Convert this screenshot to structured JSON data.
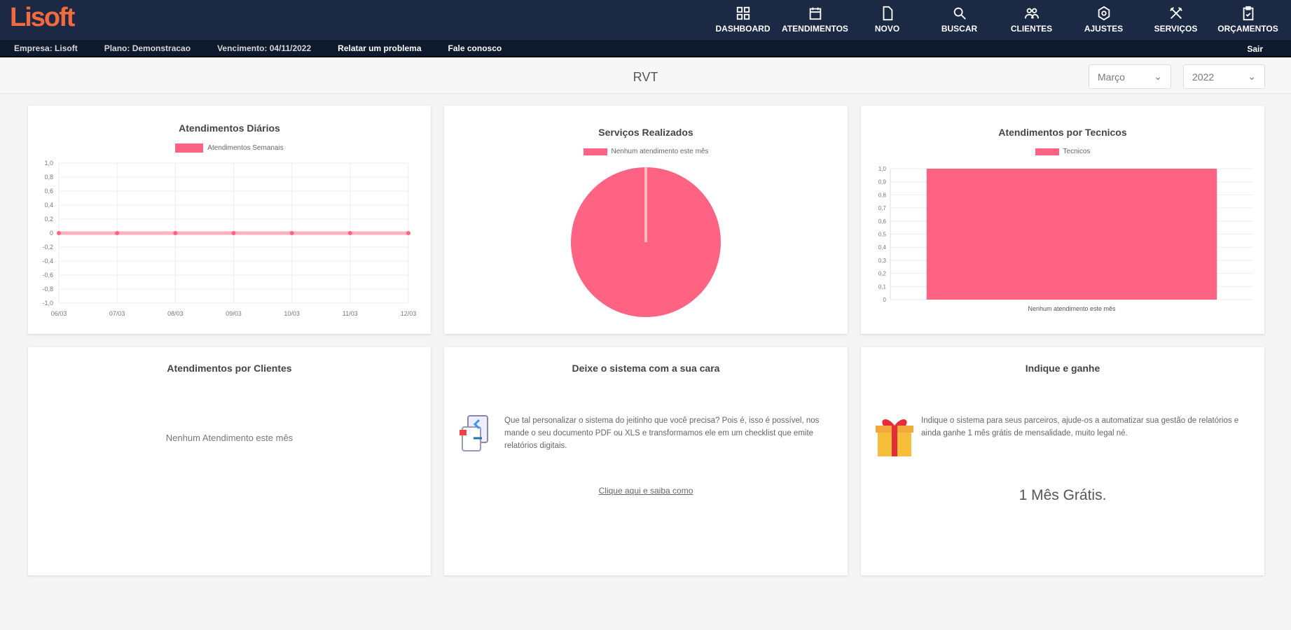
{
  "header": {
    "logo": "Lisoft",
    "nav": [
      {
        "label": "DASHBOARD",
        "icon": "dashboard-icon"
      },
      {
        "label": "ATENDIMENTOS",
        "icon": "calendar-icon"
      },
      {
        "label": "NOVO",
        "icon": "file-icon"
      },
      {
        "label": "BUSCAR",
        "icon": "search-icon"
      },
      {
        "label": "CLIENTES",
        "icon": "users-icon"
      },
      {
        "label": "AJUSTES",
        "icon": "settings-icon"
      },
      {
        "label": "SERVIÇOS",
        "icon": "tools-icon"
      },
      {
        "label": "ORÇAMENTOS",
        "icon": "clipboard-icon"
      }
    ]
  },
  "subbar": {
    "company": "Empresa: Lisoft",
    "plan": "Plano: Demonstracao",
    "due": "Vencimento: 04/11/2022",
    "report": "Relatar um problema",
    "contact": "Fale conosco",
    "logout": "Sair"
  },
  "page": {
    "title": "RVT",
    "month": "Março",
    "year": "2022"
  },
  "chart_data": [
    {
      "type": "line",
      "title": "Atendimentos Diários",
      "legend": "Atendimentos Semanais",
      "categories": [
        "06/03",
        "07/03",
        "08/03",
        "09/03",
        "10/03",
        "11/03",
        "12/03"
      ],
      "values": [
        0,
        0,
        0,
        0,
        0,
        0,
        0
      ],
      "ylim": [
        -1,
        1
      ],
      "yticks": [
        "1,0",
        "0,8",
        "0,6",
        "0,4",
        "0,2",
        "0",
        "-0,2",
        "-0,4",
        "-0,6",
        "-0,8",
        "-1,0"
      ],
      "color": "#ff6384"
    },
    {
      "type": "pie",
      "title": "Serviços Realizados",
      "legend": "Nenhum atendimento este mês",
      "values": [
        1
      ],
      "color": "#ff6384"
    },
    {
      "type": "bar",
      "title": "Atendimentos por Tecnicos",
      "legend": "Tecnicos",
      "categories": [
        "Nenhum atendimento este mês"
      ],
      "values": [
        1
      ],
      "ylim": [
        0,
        1
      ],
      "yticks": [
        "1,0",
        "0,9",
        "0,8",
        "0,7",
        "0,6",
        "0,5",
        "0,4",
        "0,3",
        "0,2",
        "0,1",
        "0"
      ],
      "color": "#ff6384"
    }
  ],
  "clients": {
    "title": "Atendimentos por Clientes",
    "empty": "Nenhum Atendimento este mês"
  },
  "custom": {
    "title": "Deixe o sistema com a sua cara",
    "text": "Que tal personalizar o sistema do jeitinho que você precisa? Pois é, isso é possível, nos mande o seu documento PDF ou XLS e transformamos ele em um checklist que emite relatórios digitais.",
    "link": "Clique aqui e saiba como"
  },
  "referral": {
    "title": "Indique e ganhe",
    "text": "Indique o sistema para seus parceiros, ajude-os a automatizar sua gestão de relatórios e ainda ganhe 1 mês grátis de mensalidade, muito legal né.",
    "offer": "1 Mês Grátis."
  }
}
